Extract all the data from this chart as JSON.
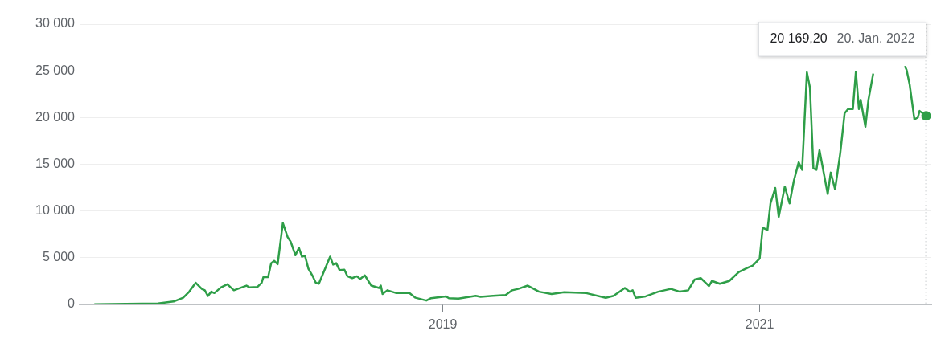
{
  "chart_data": {
    "type": "line",
    "x": [
      "2016-10-19",
      "2017-03-15",
      "2017-04-20",
      "2017-05-12",
      "2017-05-26",
      "2017-06-10",
      "2017-06-24",
      "2017-07-01",
      "2017-07-08",
      "2017-07-16",
      "2017-07-23",
      "2017-08-07",
      "2017-08-22",
      "2017-09-06",
      "2017-10-05",
      "2017-10-12",
      "2017-10-30",
      "2017-11-09",
      "2017-11-13",
      "2017-11-24",
      "2017-12-01",
      "2017-12-08",
      "2017-12-16",
      "2017-12-28",
      "2018-01-08",
      "2018-01-15",
      "2018-01-26",
      "2018-02-03",
      "2018-02-10",
      "2018-02-17",
      "2018-02-25",
      "2018-03-07",
      "2018-03-14",
      "2018-03-21",
      "2018-04-16",
      "2018-04-23",
      "2018-04-30",
      "2018-05-08",
      "2018-05-19",
      "2018-05-26",
      "2018-06-06",
      "2018-06-17",
      "2018-06-24",
      "2018-07-05",
      "2018-07-20",
      "2018-08-07",
      "2018-08-11",
      "2018-08-15",
      "2018-08-26",
      "2018-09-16",
      "2018-10-16",
      "2018-10-30",
      "2018-11-24",
      "2018-12-05",
      "2019-01-08",
      "2019-01-15",
      "2019-02-06",
      "2019-03-18",
      "2019-03-29",
      "2019-04-27",
      "2019-05-26",
      "2019-06-10",
      "2019-06-24",
      "2019-07-16",
      "2019-08-11",
      "2019-09-09",
      "2019-10-08",
      "2019-11-28",
      "2020-01-12",
      "2020-01-30",
      "2020-02-25",
      "2020-03-07",
      "2020-03-14",
      "2020-03-21",
      "2020-04-13",
      "2020-05-12",
      "2020-06-10",
      "2020-07-01",
      "2020-07-20",
      "2020-08-04",
      "2020-08-18",
      "2020-09-02",
      "2020-09-06",
      "2020-09-13",
      "2020-10-01",
      "2020-10-23",
      "2020-11-14",
      "2020-12-06",
      "2020-12-16",
      "2021-01-01",
      "2021-01-08",
      "2021-01-19",
      "2021-01-26",
      "2021-02-06",
      "2021-02-14",
      "2021-02-28",
      "2021-03-11",
      "2021-03-21",
      "2021-04-01",
      "2021-04-09",
      "2021-04-20",
      "2021-04-27",
      "2021-05-05",
      "2021-05-12",
      "2021-05-19",
      "2021-06-07",
      "2021-06-14",
      "2021-06-24",
      "2021-07-06",
      "2021-07-16",
      "2021-07-24",
      "2021-08-04",
      "2021-08-11",
      "2021-08-18",
      "2021-08-22",
      "2021-09-02",
      "2021-09-09",
      "2021-09-20",
      "2021-10-27",
      "2021-12-02",
      "2021-12-06",
      "2021-12-13",
      "2021-12-24",
      "2022-01-01",
      "2022-01-05",
      "2022-01-20"
    ],
    "series": [
      {
        "color": "#2e9e48",
        "values": [
          0,
          100,
          300,
          700,
          1350,
          2300,
          1650,
          1500,
          900,
          1350,
          1200,
          1800,
          2150,
          1500,
          2000,
          1800,
          1850,
          2300,
          2900,
          2900,
          4400,
          4650,
          4300,
          8700,
          7200,
          6700,
          5250,
          6050,
          5100,
          5200,
          3800,
          3000,
          2300,
          2200,
          5100,
          4250,
          4400,
          3650,
          3700,
          3000,
          2800,
          3000,
          2700,
          3100,
          2000,
          1750,
          2000,
          1100,
          1500,
          1200,
          1200,
          700,
          400,
          650,
          850,
          650,
          600,
          900,
          800,
          900,
          1000,
          1500,
          1650,
          2000,
          1350,
          1100,
          1300,
          1200,
          700,
          900,
          1750,
          1350,
          1500,
          700,
          850,
          1350,
          1650,
          1350,
          1500,
          2650,
          2800,
          2150,
          1950,
          2500,
          2200,
          2500,
          3450,
          3950,
          4150,
          4900,
          8200,
          7950,
          10800,
          12450,
          9350,
          12600,
          10800,
          13250,
          15200,
          14400,
          24850,
          23200,
          14550,
          14400,
          16500,
          11800,
          14100,
          12300,
          16200,
          20450,
          20900,
          20900,
          24900,
          20900,
          21900,
          19000,
          21900,
          24700,
          null,
          25500,
          25100,
          23550,
          19800,
          20000,
          20700,
          20169.2
        ]
      }
    ],
    "xlim": [
      "2016-09-15",
      "2022-02-01"
    ],
    "xticks": [
      "2019",
      "2021"
    ],
    "ylim": [
      0,
      30000
    ],
    "yticks": [
      0,
      {
        "value": 5000,
        "label": "5 000"
      },
      {
        "value": 10000,
        "label": "10 000"
      },
      {
        "value": 15000,
        "label": "15 000"
      },
      {
        "value": 20000,
        "label": "20 000"
      },
      {
        "value": 25000,
        "label": "25 000"
      },
      {
        "value": 30000,
        "label": "30 000"
      }
    ],
    "grid": "y",
    "legend": false,
    "marker": "none",
    "line_style": "solid",
    "ref_lines": [
      {
        "axis": "x",
        "value": "2022-01-20",
        "color": "#9aa0a6",
        "line_style": "dotted"
      }
    ],
    "annotations": [
      "20 169,20",
      "20. Jan. 2022"
    ]
  }
}
